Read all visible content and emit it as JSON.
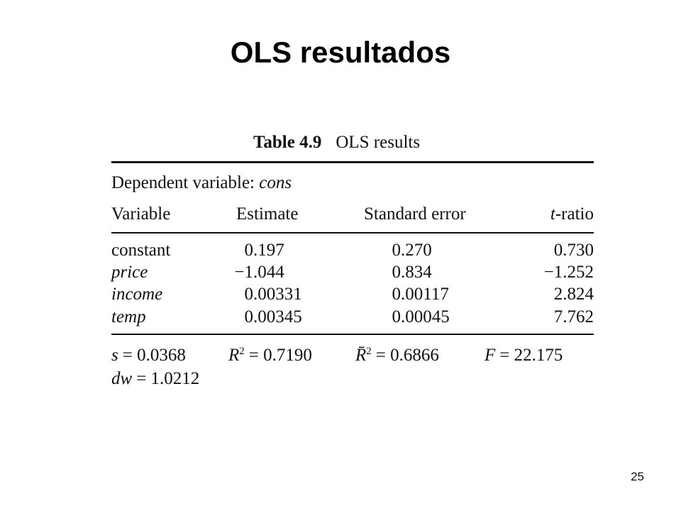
{
  "header": {
    "title": "OLS resultados"
  },
  "table": {
    "caption": {
      "number": "Table 4.9",
      "text": "OLS results"
    },
    "dependent": {
      "label": "Dependent variable:",
      "variable": "cons"
    },
    "columns": [
      "Variable",
      "Estimate",
      "Standard error",
      {
        "italic": "t",
        "rest": "-ratio"
      }
    ],
    "rows": [
      [
        "constant",
        "0.197",
        "0.270",
        "0.730"
      ],
      [
        "price",
        "−1.044",
        "0.834",
        "−1.252"
      ],
      [
        "income",
        "0.00331",
        "0.00117",
        "2.824"
      ],
      [
        "temp",
        "0.00345",
        "0.00045",
        "7.762"
      ]
    ],
    "stats": [
      [
        {
          "symbol": "s",
          "value": "= 0.0368"
        },
        {
          "symbol": "R",
          "sup": "2",
          "value": "= 0.7190"
        },
        {
          "symbol": "R̄",
          "sup": "2",
          "value": "= 0.6866"
        },
        {
          "symbol": "F",
          "value": "= 22.175"
        }
      ],
      [
        {
          "symbol": "dw",
          "value": "= 1.0212"
        }
      ]
    ]
  },
  "footer": {
    "page": "25"
  }
}
